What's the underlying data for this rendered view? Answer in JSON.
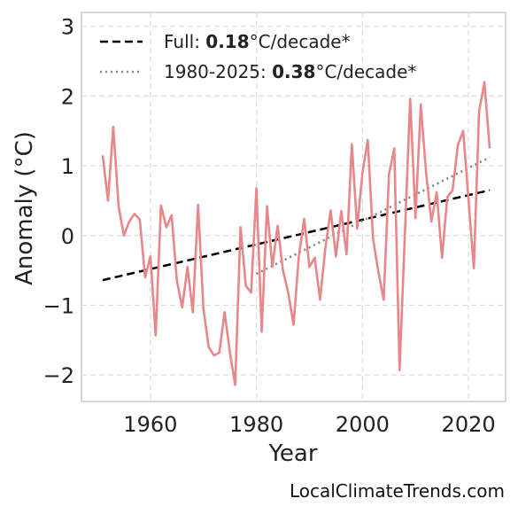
{
  "chart_data": {
    "type": "line",
    "title": "",
    "xlabel": "Year",
    "ylabel": "Anomaly (°C)",
    "xlim": [
      1947,
      2027
    ],
    "ylim": [
      -2.38,
      3.2
    ],
    "xticks": [
      1960,
      1980,
      2000,
      2020
    ],
    "yticks": [
      -2,
      -1,
      0,
      1,
      2,
      3
    ],
    "ytick_labels": [
      "−2",
      "−1",
      "0",
      "1",
      "2",
      "3"
    ],
    "grid": true,
    "legend_position": "top-left",
    "colors": {
      "series": "#e8878a",
      "full_trend": "#000000",
      "recent_trend": "#808080"
    },
    "series": [
      {
        "x": [
          1951,
          1952,
          1953,
          1954,
          1955,
          1956,
          1957,
          1958,
          1959,
          1960,
          1961,
          1962,
          1963,
          1964,
          1965,
          1966,
          1967,
          1968,
          1969,
          1970,
          1971,
          1972,
          1973,
          1974,
          1975,
          1976,
          1977,
          1978,
          1979,
          1980,
          1981,
          1982,
          1983,
          1984,
          1985,
          1986,
          1987,
          1988,
          1989,
          1990,
          1991,
          1992,
          1993,
          1994,
          1995,
          1996,
          1997,
          1998,
          1999,
          2000,
          2001,
          2002,
          2003,
          2004,
          2005,
          2006,
          2007,
          2008,
          2009,
          2010,
          2011,
          2012,
          2013,
          2014,
          2015,
          2016,
          2017,
          2018,
          2019,
          2020,
          2021,
          2022,
          2023,
          2024
        ],
        "values": [
          1.15,
          0.5,
          1.56,
          0.42,
          0.0,
          0.2,
          0.31,
          0.23,
          -0.6,
          -0.3,
          -1.43,
          0.43,
          0.12,
          0.29,
          -0.65,
          -1.03,
          -0.45,
          -1.1,
          0.44,
          -1.05,
          -1.6,
          -1.72,
          -1.68,
          -1.1,
          -1.68,
          -2.14,
          0.12,
          -0.72,
          -0.82,
          0.68,
          -1.38,
          0.42,
          -0.45,
          0.14,
          -0.5,
          -0.82,
          -1.28,
          -0.3,
          0.24,
          -0.45,
          -0.32,
          -0.92,
          -0.18,
          0.36,
          -0.3,
          0.35,
          -0.27,
          1.31,
          0.1,
          0.9,
          1.37,
          -0.05,
          -0.52,
          -0.92,
          0.88,
          1.25,
          -1.93,
          0.02,
          1.96,
          0.25,
          1.88,
          0.9,
          0.2,
          0.62,
          -0.32,
          0.55,
          0.65,
          1.3,
          1.5,
          0.52,
          -0.47,
          1.78,
          2.2,
          1.25
        ]
      }
    ],
    "trends": [
      {
        "label": "Full: ",
        "rate": "0.18",
        "unit": "°C/decade*",
        "style": "dashed",
        "x": [
          1951,
          2024
        ],
        "y": [
          -0.64,
          0.65
        ]
      },
      {
        "label": "1980-2025: ",
        "rate": "0.38",
        "unit": "°C/decade*",
        "style": "dotted",
        "x": [
          1980,
          2024
        ],
        "y": [
          -0.55,
          1.12
        ]
      }
    ]
  },
  "credit": "LocalClimateTrends.com"
}
